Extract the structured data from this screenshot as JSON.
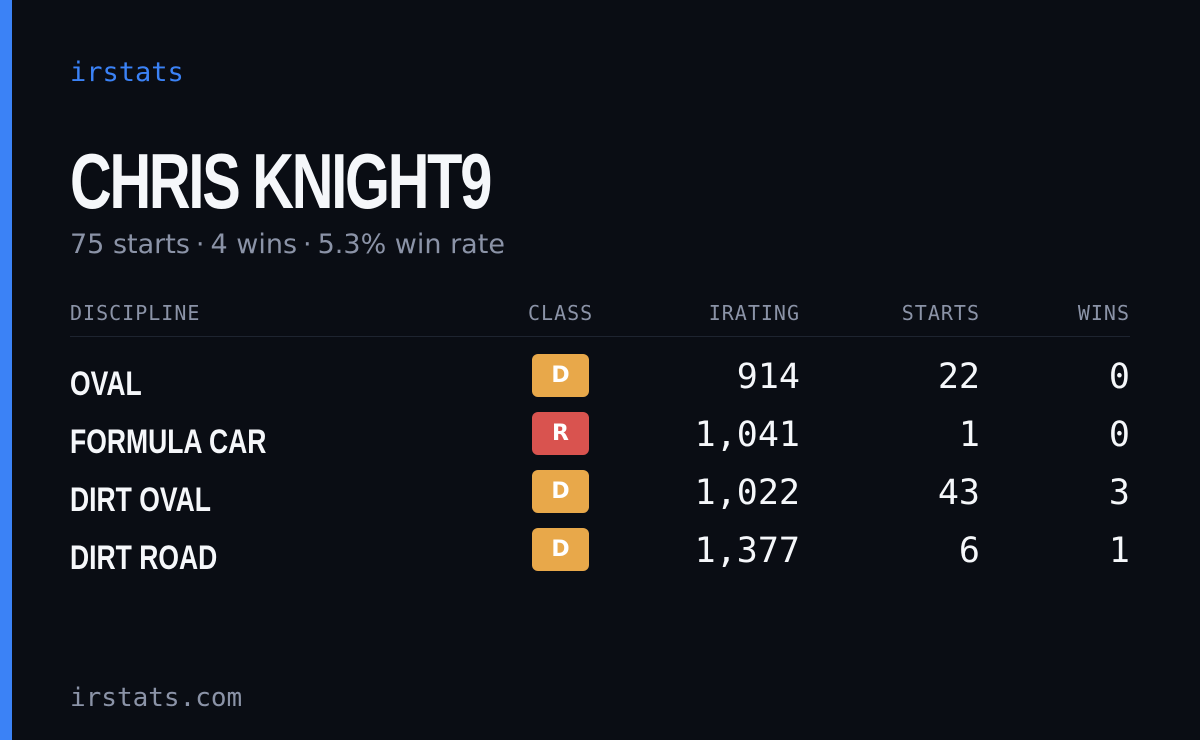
{
  "brand": "irstats",
  "player_name": "CHRIS KNIGHT9",
  "summary": {
    "starts": "75 starts",
    "wins": "4 wins",
    "win_rate": "5.3% win rate",
    "separator": "·"
  },
  "table": {
    "headers": {
      "discipline": "DISCIPLINE",
      "class": "CLASS",
      "irating": "IRATING",
      "starts": "STARTS",
      "wins": "WINS"
    },
    "rows": [
      {
        "discipline": "OVAL",
        "class": "D",
        "class_color": "#e8a84a",
        "irating": "914",
        "starts": "22",
        "wins": "0"
      },
      {
        "discipline": "FORMULA CAR",
        "class": "R",
        "class_color": "#d9534f",
        "irating": "1,041",
        "starts": "1",
        "wins": "0"
      },
      {
        "discipline": "DIRT OVAL",
        "class": "D",
        "class_color": "#e8a84a",
        "irating": "1,022",
        "starts": "43",
        "wins": "3"
      },
      {
        "discipline": "DIRT ROAD",
        "class": "D",
        "class_color": "#e8a84a",
        "irating": "1,377",
        "starts": "6",
        "wins": "1"
      }
    ]
  },
  "footer": "irstats.com",
  "colors": {
    "background": "#0a0d14",
    "accent": "#3b82f6",
    "muted_text": "#8b93a7",
    "primary_text": "#f5f7fa"
  }
}
